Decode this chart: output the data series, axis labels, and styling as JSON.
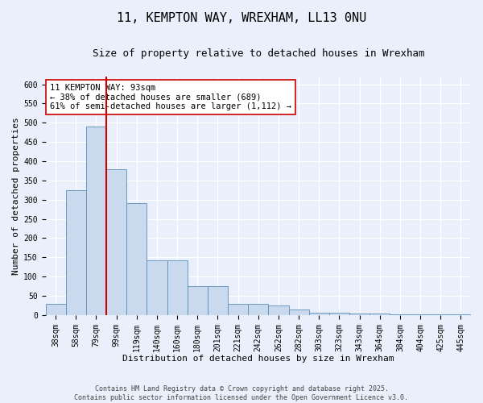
{
  "title_line1": "11, KEMPTON WAY, WREXHAM, LL13 0NU",
  "title_line2": "Size of property relative to detached houses in Wrexham",
  "xlabel": "Distribution of detached houses by size in Wrexham",
  "ylabel": "Number of detached properties",
  "categories": [
    "38sqm",
    "58sqm",
    "79sqm",
    "99sqm",
    "119sqm",
    "140sqm",
    "160sqm",
    "180sqm",
    "201sqm",
    "221sqm",
    "242sqm",
    "262sqm",
    "282sqm",
    "303sqm",
    "323sqm",
    "343sqm",
    "364sqm",
    "384sqm",
    "404sqm",
    "425sqm",
    "445sqm"
  ],
  "values": [
    28,
    325,
    490,
    378,
    290,
    143,
    143,
    75,
    75,
    30,
    30,
    25,
    14,
    7,
    5,
    4,
    3,
    2,
    1,
    1,
    2
  ],
  "bar_color": "#c9d9ee",
  "bar_edge_color": "#5b8db8",
  "vline_x": 2.5,
  "vline_color": "#cc0000",
  "annotation_text": "11 KEMPTON WAY: 93sqm\n← 38% of detached houses are smaller (689)\n61% of semi-detached houses are larger (1,112) →",
  "annotation_box_color": "#ffffff",
  "annotation_box_edge": "#cc0000",
  "ylim": [
    0,
    620
  ],
  "yticks": [
    0,
    50,
    100,
    150,
    200,
    250,
    300,
    350,
    400,
    450,
    500,
    550,
    600
  ],
  "bg_color": "#eaf0fb",
  "plot_bg_color": "#eaf0fb",
  "footer": "Contains HM Land Registry data © Crown copyright and database right 2025.\nContains public sector information licensed under the Open Government Licence v3.0.",
  "title_fontsize": 11,
  "subtitle_fontsize": 9,
  "axis_label_fontsize": 8,
  "tick_fontsize": 7,
  "annotation_fontsize": 7.5
}
